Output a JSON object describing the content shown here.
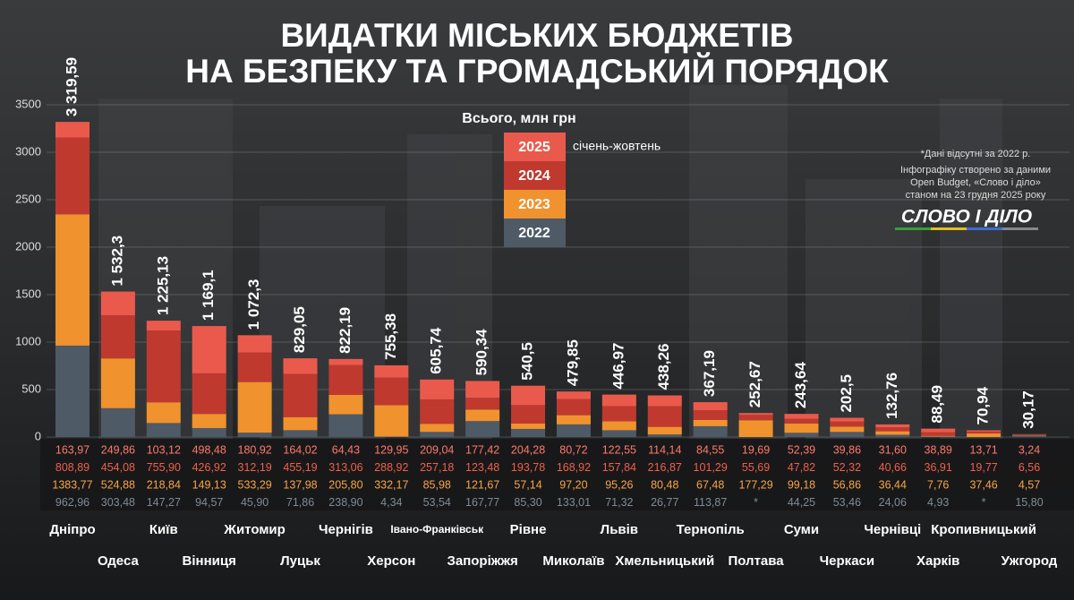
{
  "chart_data": {
    "type": "stacked_bar",
    "title_lines": [
      "ВИДАТКИ МІСЬКИХ БЮДЖЕТІВ",
      "НА БЕЗПЕКУ ТА ГРОМАДСЬКИЙ ПОРЯДОК"
    ],
    "legend_title": "Всього, млн грн",
    "legend_note": "січень-жовтень",
    "notes": [
      "*Дані відсутні за 2022 р.",
      "Інфографіку створено за даними",
      "Open Budget, «Слово і діло»",
      "станом на 23 грудня 2025 року"
    ],
    "logo": "СЛОВО І ДІЛО",
    "categories": [
      "Дніпро",
      "Одеса",
      "Київ",
      "Вінниця",
      "Житомир",
      "Луцьк",
      "Чернігів",
      "Херсон",
      "Івано-Франківськ",
      "Запоріжжя",
      "Рівне",
      "Миколаїв",
      "Львів",
      "Хмельницький",
      "Тернопіль",
      "Полтава",
      "Суми",
      "Черкаси",
      "Чернівці",
      "Харків",
      "Кропивницький",
      "Ужгород"
    ],
    "ylim": [
      0,
      3500
    ],
    "yticks": [
      0,
      500,
      1000,
      1500,
      2000,
      2500,
      3000,
      3500
    ],
    "grid": true,
    "series": [
      {
        "name": "2025",
        "color": "#ea5a4c",
        "text_color": "#ff7a6a",
        "values": [
          163.97,
          249.86,
          103.12,
          498.48,
          180.92,
          164.02,
          64.43,
          129.95,
          209.04,
          177.42,
          204.28,
          80.72,
          122.55,
          114.14,
          84.55,
          19.69,
          52.39,
          39.86,
          31.6,
          38.89,
          13.71,
          3.24
        ],
        "value_labels": [
          "163,97",
          "249,86",
          "103,12",
          "498,48",
          "180,92",
          "164,02",
          "64,43",
          "129,95",
          "209,04",
          "177,42",
          "204,28",
          "80,72",
          "122,55",
          "114,14",
          "84,55",
          "19,69",
          "52,39",
          "39,86",
          "31,60",
          "38,89",
          "13,71",
          "3,24"
        ]
      },
      {
        "name": "2024",
        "color": "#c0392f",
        "text_color": "#f0604a",
        "values": [
          808.89,
          454.08,
          755.9,
          426.92,
          312.19,
          455.19,
          313.06,
          288.92,
          257.18,
          123.48,
          193.78,
          168.92,
          157.84,
          216.87,
          101.29,
          55.69,
          47.82,
          52.32,
          40.66,
          36.91,
          19.77,
          6.56
        ],
        "value_labels": [
          "808,89",
          "454,08",
          "755,90",
          "426,92",
          "312,19",
          "455,19",
          "313,06",
          "288,92",
          "257,18",
          "123,48",
          "193,78",
          "168,92",
          "157,84",
          "216,87",
          "101,29",
          "55,69",
          "47,82",
          "52,32",
          "40,66",
          "36,91",
          "19,77",
          "6,56"
        ]
      },
      {
        "name": "2023",
        "color": "#f0922e",
        "text_color": "#f7a548",
        "values": [
          1383.77,
          524.88,
          218.84,
          149.13,
          533.29,
          137.98,
          205.8,
          332.17,
          85.98,
          121.67,
          57.14,
          97.2,
          95.26,
          80.48,
          67.48,
          177.29,
          99.18,
          56.86,
          36.44,
          7.76,
          37.46,
          4.57
        ],
        "value_labels": [
          "1383,77",
          "524,88",
          "218,84",
          "149,13",
          "533,29",
          "137,98",
          "205,80",
          "332,17",
          "85,98",
          "121,67",
          "57,14",
          "97,20",
          "95,26",
          "80,48",
          "67,48",
          "177,29",
          "99,18",
          "56,86",
          "36,44",
          "7,76",
          "37,46",
          "4,57"
        ]
      },
      {
        "name": "2022",
        "color": "#4e5a66",
        "text_color": "#7e8c99",
        "values": [
          962.96,
          303.48,
          147.27,
          94.57,
          45.9,
          71.86,
          238.9,
          4.34,
          53.54,
          167.77,
          85.3,
          133.01,
          71.32,
          26.77,
          113.87,
          null,
          44.25,
          53.46,
          24.06,
          4.93,
          null,
          15.8
        ],
        "value_labels": [
          "962,96",
          "303,48",
          "147,27",
          "94,57",
          "45,90",
          "71,86",
          "238,90",
          "4,34",
          "53,54",
          "167,77",
          "85,30",
          "133,01",
          "71,32",
          "26,77",
          "113,87",
          "*",
          "44,25",
          "53,46",
          "24,06",
          "4,93",
          "*",
          "15,80"
        ]
      }
    ],
    "totals": {
      "values": [
        3319.59,
        1532.3,
        1225.13,
        1169.1,
        1072.3,
        829.05,
        822.19,
        755.38,
        605.74,
        590.34,
        540.5,
        479.85,
        446.97,
        438.26,
        367.19,
        252.67,
        243.64,
        202.5,
        132.76,
        88.49,
        70.94,
        30.17
      ],
      "value_labels": [
        "3 319,59",
        "1 532,3",
        "1 225,13",
        "1 169,1",
        "1 072,3",
        "829,05",
        "822,19",
        "755,38",
        "605,74",
        "590,34",
        "540,5",
        "479,85",
        "446,97",
        "438,26",
        "367,19",
        "252,67",
        "243,64",
        "202,5",
        "132,76",
        "88,49",
        "70,94",
        "30,17"
      ]
    }
  }
}
